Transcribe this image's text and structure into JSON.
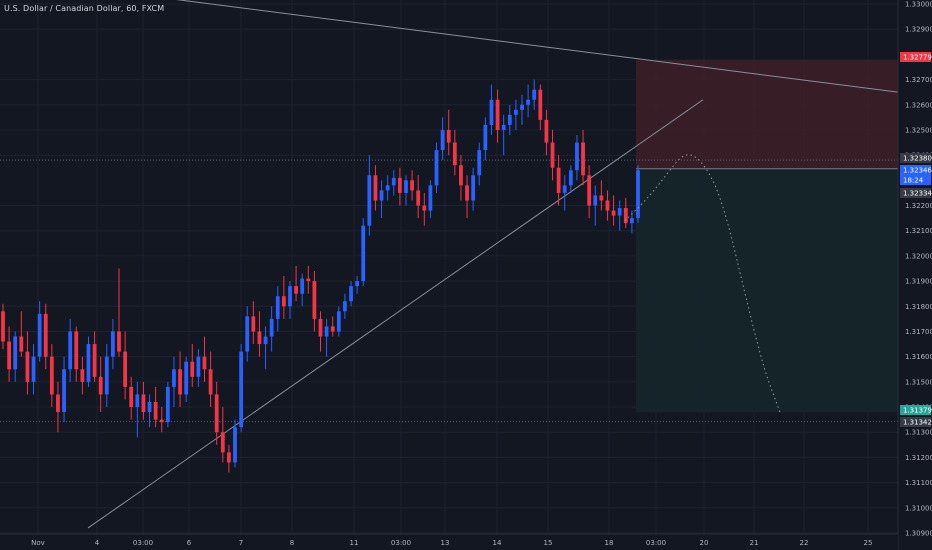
{
  "header": {
    "title": "U.S. Dollar / Canadian Dollar, 60, FXCM"
  },
  "colors": {
    "background": "#131722",
    "grid": "#1e2230",
    "up": "#2962ff",
    "down": "#f23645",
    "text": "#b2b5be",
    "trendline": "#8a8f9c",
    "stop_zone": "#3d1f27",
    "target_zone": "#15262a",
    "price_tag_red": "#f23645",
    "price_tag_blue": "#2962ff",
    "price_tag_green": "#26a69a",
    "price_tag_dark": "#363a45"
  },
  "chart_data": {
    "type": "candlestick",
    "symbol": "U.S. Dollar / Canadian Dollar",
    "interval": "60",
    "source": "FXCM",
    "x_ticks": [
      "Nov",
      "4",
      "03:00",
      "6",
      "7",
      "8",
      "11",
      "03:00",
      "13",
      "14",
      "15",
      "18",
      "03:00",
      "20",
      "21",
      "22",
      "25"
    ],
    "y_ticks": [
      "1.33000",
      "1.32900",
      "1.32700",
      "1.32600",
      "1.32500",
      "1.32400",
      "1.32200",
      "1.32100",
      "1.32000",
      "1.31900",
      "1.31800",
      "1.31700",
      "1.31600",
      "1.31500",
      "1.31400",
      "1.31300",
      "1.31200",
      "1.31100",
      "1.31000",
      "1.30900"
    ],
    "ylim": [
      1.309,
      1.33
    ],
    "price_labels": [
      {
        "value": "1.32779",
        "style": "red"
      },
      {
        "value": "1.32380",
        "style": "dark"
      },
      {
        "value": "1.32346",
        "style": "blue"
      },
      {
        "value": "18:24",
        "style": "blue"
      },
      {
        "value": "1.32334",
        "style": "dark"
      },
      {
        "value": "1.31379",
        "style": "green"
      },
      {
        "value": "1.31342",
        "style": "dark"
      }
    ],
    "horizontal_levels": [
      1.3238,
      1.31342
    ],
    "short_position": {
      "entry": 1.32346,
      "stop": 1.32779,
      "target": 1.31379
    },
    "trendlines": [
      {
        "name": "upper-resistance",
        "from": {
          "x": "Nov 4",
          "y": 1.3302
        },
        "to": {
          "x": "Nov 25",
          "y": 1.3265
        }
      },
      {
        "name": "rising-support",
        "from": {
          "x": "Nov 4",
          "y": 1.3092
        },
        "to": {
          "x": "Nov 20",
          "y": 1.3262
        }
      }
    ],
    "projection_path": [
      {
        "t": "Nov 18",
        "y": 1.3214
      },
      {
        "t": "Nov 19",
        "y": 1.3223
      },
      {
        "t": "Nov 19",
        "y": 1.3232
      },
      {
        "t": "Nov 19",
        "y": 1.3242
      },
      {
        "t": "Nov 20",
        "y": 1.3236
      },
      {
        "t": "Nov 20",
        "y": 1.322
      },
      {
        "t": "Nov 21",
        "y": 1.318
      },
      {
        "t": "Nov 21",
        "y": 1.3155
      },
      {
        "t": "Nov 21",
        "y": 1.3138
      }
    ],
    "candles": [
      [
        1.3178,
        1.3181,
        1.3163,
        1.3166
      ],
      [
        1.3166,
        1.3172,
        1.315,
        1.3155
      ],
      [
        1.3155,
        1.317,
        1.315,
        1.3168
      ],
      [
        1.3168,
        1.3178,
        1.316,
        1.3162
      ],
      [
        1.3162,
        1.317,
        1.3145,
        1.315
      ],
      [
        1.315,
        1.3165,
        1.3145,
        1.316
      ],
      [
        1.316,
        1.3182,
        1.3158,
        1.3177
      ],
      [
        1.3177,
        1.3181,
        1.3155,
        1.316
      ],
      [
        1.316,
        1.3165,
        1.314,
        1.3145
      ],
      [
        1.3145,
        1.315,
        1.313,
        1.3138
      ],
      [
        1.3138,
        1.316,
        1.3134,
        1.3155
      ],
      [
        1.3155,
        1.3175,
        1.315,
        1.317
      ],
      [
        1.317,
        1.3172,
        1.315,
        1.3155
      ],
      [
        1.3155,
        1.316,
        1.3145,
        1.315
      ],
      [
        1.315,
        1.3168,
        1.3148,
        1.3165
      ],
      [
        1.3165,
        1.317,
        1.315,
        1.3152
      ],
      [
        1.3152,
        1.316,
        1.3138,
        1.3145
      ],
      [
        1.3145,
        1.3165,
        1.314,
        1.316
      ],
      [
        1.316,
        1.3175,
        1.3155,
        1.317
      ],
      [
        1.317,
        1.3195,
        1.316,
        1.3162
      ],
      [
        1.3162,
        1.317,
        1.3143,
        1.3148
      ],
      [
        1.3148,
        1.3152,
        1.3135,
        1.314
      ],
      [
        1.314,
        1.315,
        1.3128,
        1.3145
      ],
      [
        1.3145,
        1.315,
        1.3135,
        1.3138
      ],
      [
        1.3138,
        1.3145,
        1.3132,
        1.3142
      ],
      [
        1.3142,
        1.3148,
        1.3132,
        1.3135
      ],
      [
        1.3135,
        1.314,
        1.313,
        1.3134
      ],
      [
        1.3134,
        1.315,
        1.3132,
        1.3148
      ],
      [
        1.3148,
        1.316,
        1.314,
        1.3155
      ],
      [
        1.3155,
        1.3162,
        1.314,
        1.3145
      ],
      [
        1.3145,
        1.316,
        1.3142,
        1.3158
      ],
      [
        1.3158,
        1.3165,
        1.3148,
        1.3152
      ],
      [
        1.3152,
        1.3163,
        1.3148,
        1.316
      ],
      [
        1.316,
        1.3168,
        1.315,
        1.3155
      ],
      [
        1.3155,
        1.3162,
        1.314,
        1.3145
      ],
      [
        1.3145,
        1.315,
        1.3125,
        1.313
      ],
      [
        1.313,
        1.314,
        1.3118,
        1.3122
      ],
      [
        1.3122,
        1.3125,
        1.3114,
        1.3118
      ],
      [
        1.3118,
        1.3135,
        1.3116,
        1.3132
      ],
      [
        1.3132,
        1.3165,
        1.313,
        1.3162
      ],
      [
        1.3162,
        1.318,
        1.3158,
        1.3176
      ],
      [
        1.3176,
        1.3182,
        1.3165,
        1.317
      ],
      [
        1.317,
        1.3178,
        1.316,
        1.3165
      ],
      [
        1.3165,
        1.3172,
        1.3155,
        1.3168
      ],
      [
        1.3168,
        1.318,
        1.3162,
        1.3175
      ],
      [
        1.3175,
        1.3188,
        1.317,
        1.3184
      ],
      [
        1.3184,
        1.3192,
        1.3175,
        1.318
      ],
      [
        1.318,
        1.319,
        1.3175,
        1.3188
      ],
      [
        1.3188,
        1.3196,
        1.3182,
        1.3185
      ],
      [
        1.3185,
        1.3193,
        1.318,
        1.3191
      ],
      [
        1.3191,
        1.3196,
        1.3185,
        1.319
      ],
      [
        1.319,
        1.3194,
        1.317,
        1.3175
      ],
      [
        1.3175,
        1.3178,
        1.3162,
        1.3168
      ],
      [
        1.3168,
        1.3175,
        1.316,
        1.3172
      ],
      [
        1.3172,
        1.3176,
        1.3168,
        1.317
      ],
      [
        1.317,
        1.318,
        1.3168,
        1.3178
      ],
      [
        1.3178,
        1.3185,
        1.3175,
        1.3182
      ],
      [
        1.3182,
        1.319,
        1.318,
        1.3188
      ],
      [
        1.3188,
        1.3192,
        1.3185,
        1.319
      ],
      [
        1.319,
        1.3215,
        1.3188,
        1.3212
      ],
      [
        1.3212,
        1.324,
        1.3208,
        1.3232
      ],
      [
        1.3232,
        1.3236,
        1.3218,
        1.3222
      ],
      [
        1.3222,
        1.323,
        1.3215,
        1.3226
      ],
      [
        1.3226,
        1.3232,
        1.3222,
        1.3228
      ],
      [
        1.3228,
        1.3234,
        1.3224,
        1.3231
      ],
      [
        1.3231,
        1.3235,
        1.322,
        1.3225
      ],
      [
        1.3225,
        1.3232,
        1.322,
        1.323
      ],
      [
        1.323,
        1.3234,
        1.3222,
        1.3226
      ],
      [
        1.3226,
        1.3232,
        1.3215,
        1.322
      ],
      [
        1.322,
        1.3225,
        1.3212,
        1.3218
      ],
      [
        1.3218,
        1.323,
        1.3215,
        1.3228
      ],
      [
        1.3228,
        1.3245,
        1.3225,
        1.3242
      ],
      [
        1.3242,
        1.3255,
        1.3238,
        1.325
      ],
      [
        1.325,
        1.3258,
        1.324,
        1.3245
      ],
      [
        1.3245,
        1.325,
        1.3232,
        1.3236
      ],
      [
        1.3236,
        1.324,
        1.3222,
        1.3228
      ],
      [
        1.3228,
        1.3232,
        1.3215,
        1.3222
      ],
      [
        1.3222,
        1.3235,
        1.3218,
        1.3232
      ],
      [
        1.3232,
        1.3245,
        1.3228,
        1.3242
      ],
      [
        1.3242,
        1.3255,
        1.3238,
        1.3252
      ],
      [
        1.3252,
        1.3268,
        1.3248,
        1.3262
      ],
      [
        1.3262,
        1.3266,
        1.3245,
        1.325
      ],
      [
        1.325,
        1.3256,
        1.324,
        1.3252
      ],
      [
        1.3252,
        1.326,
        1.3248,
        1.3256
      ],
      [
        1.3256,
        1.3262,
        1.325,
        1.3258
      ],
      [
        1.3258,
        1.3264,
        1.3252,
        1.326
      ],
      [
        1.326,
        1.3268,
        1.3255,
        1.3262
      ],
      [
        1.3262,
        1.327,
        1.3258,
        1.3266
      ],
      [
        1.3266,
        1.3268,
        1.325,
        1.3254
      ],
      [
        1.3254,
        1.3258,
        1.324,
        1.3245
      ],
      [
        1.3245,
        1.325,
        1.323,
        1.3235
      ],
      [
        1.3235,
        1.324,
        1.322,
        1.3225
      ],
      [
        1.3225,
        1.3232,
        1.3218,
        1.3228
      ],
      [
        1.3228,
        1.3236,
        1.3225,
        1.3234
      ],
      [
        1.3234,
        1.3248,
        1.323,
        1.3245
      ],
      [
        1.3245,
        1.325,
        1.3228,
        1.3232
      ],
      [
        1.3232,
        1.3236,
        1.3215,
        1.322
      ],
      [
        1.322,
        1.3228,
        1.3212,
        1.3224
      ],
      [
        1.3224,
        1.323,
        1.3218,
        1.3222
      ],
      [
        1.3222,
        1.3226,
        1.3214,
        1.3218
      ],
      [
        1.3218,
        1.3224,
        1.3212,
        1.3216
      ],
      [
        1.3216,
        1.3222,
        1.321,
        1.3219
      ],
      [
        1.3219,
        1.3223,
        1.3211,
        1.3213
      ],
      [
        1.3213,
        1.3218,
        1.3209,
        1.3215
      ],
      [
        1.3215,
        1.3236,
        1.3213,
        1.3234
      ]
    ]
  }
}
